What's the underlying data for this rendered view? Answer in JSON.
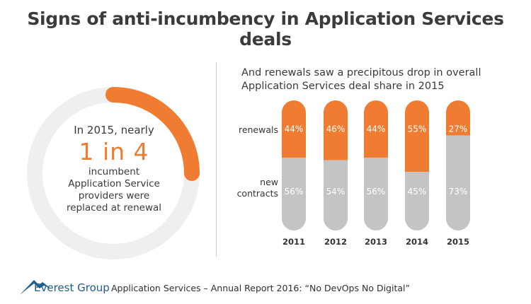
{
  "title": "Signs of anti-incumbency in Application Services deals",
  "ring": {
    "lead": "In 2015, nearly",
    "highlight": "1 in 4",
    "rest": "incumbent Application Service providers were replaced at renewal",
    "fraction": 0.25,
    "colors": {
      "track": "#efefef",
      "fill": "#f07c32"
    }
  },
  "subtitle_line1": "And renewals saw a precipitous drop in overall",
  "subtitle_line2": "Application Services deal share in 2015",
  "chart_data": {
    "type": "bar",
    "stacked": true,
    "orientation": "vertical",
    "categories": [
      "2011",
      "2012",
      "2013",
      "2014",
      "2015"
    ],
    "series": [
      {
        "name": "renewals",
        "label": "renewals",
        "values": [
          44,
          46,
          44,
          55,
          27
        ],
        "labels": [
          "44%",
          "46%",
          "44%",
          "55%",
          "27%"
        ],
        "color": "#f07c32"
      },
      {
        "name": "new contracts",
        "label": "new contracts",
        "values": [
          56,
          54,
          56,
          45,
          73
        ],
        "labels": [
          "56%",
          "54%",
          "56%",
          "45%",
          "73%"
        ],
        "color": "#c4c4c4"
      }
    ],
    "unit": "%",
    "ylim": [
      0,
      100
    ],
    "title": "And renewals saw a precipitous drop in overall Application Services deal share in 2015"
  },
  "footer": {
    "brand": "Everest Group",
    "report": "Application Services – Annual Report 2016: “No DevOps No Digital”"
  }
}
